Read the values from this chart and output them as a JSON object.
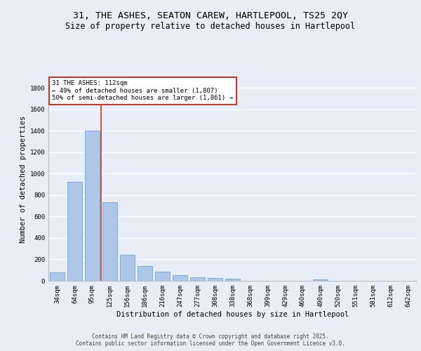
{
  "title_line1": "31, THE ASHES, SEATON CAREW, HARTLEPOOL, TS25 2QY",
  "title_line2": "Size of property relative to detached houses in Hartlepool",
  "xlabel": "Distribution of detached houses by size in Hartlepool",
  "ylabel": "Number of detached properties",
  "categories": [
    "34sqm",
    "64sqm",
    "95sqm",
    "125sqm",
    "156sqm",
    "186sqm",
    "216sqm",
    "247sqm",
    "277sqm",
    "308sqm",
    "338sqm",
    "368sqm",
    "399sqm",
    "429sqm",
    "460sqm",
    "490sqm",
    "520sqm",
    "551sqm",
    "581sqm",
    "612sqm",
    "642sqm"
  ],
  "values": [
    80,
    925,
    1400,
    735,
    245,
    140,
    85,
    52,
    30,
    28,
    18,
    0,
    0,
    0,
    0,
    12,
    0,
    0,
    0,
    0,
    0
  ],
  "bar_color": "#aec6e8",
  "bar_edge_color": "#5b9bd5",
  "vline_color": "#c0392b",
  "annotation_text": "31 THE ASHES: 112sqm\n← 49% of detached houses are smaller (1,807)\n50% of semi-detached houses are larger (1,861) →",
  "annotation_box_color": "#c0392b",
  "ylim": [
    0,
    1900
  ],
  "yticks": [
    0,
    200,
    400,
    600,
    800,
    1000,
    1200,
    1400,
    1600,
    1800
  ],
  "footer_line1": "Contains HM Land Registry data © Crown copyright and database right 2025.",
  "footer_line2": "Contains public sector information licensed under the Open Government Licence v3.0.",
  "bg_color": "#e8eef8",
  "plot_bg_color": "#e8eef8",
  "grid_color": "#ffffff",
  "title_fontsize": 9.5,
  "subtitle_fontsize": 8.5,
  "axis_label_fontsize": 7.5,
  "tick_fontsize": 6.5,
  "annotation_fontsize": 6.5,
  "footer_fontsize": 5.5
}
